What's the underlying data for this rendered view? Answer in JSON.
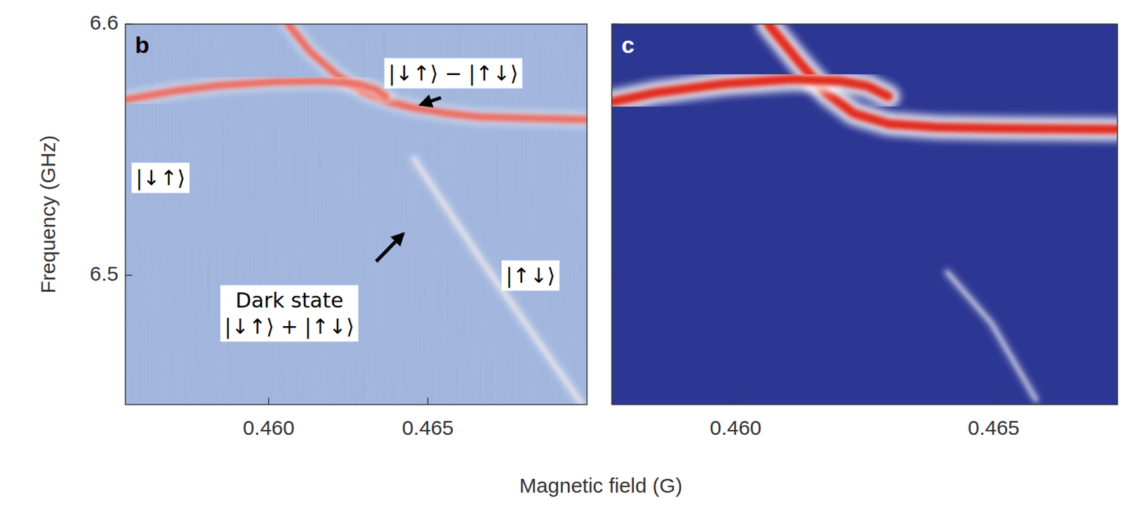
{
  "chart_data": [
    {
      "type": "line",
      "panel": "b",
      "x_label": "Magnetic field (G)",
      "y_label": "Frequency (GHz)",
      "xlim": [
        0.4555,
        0.47
      ],
      "ylim": [
        6.4485,
        6.6
      ],
      "xticks": [
        {
          "value": 0.46,
          "label": "0.460"
        },
        {
          "value": 0.465,
          "label": "0.465"
        }
      ],
      "yticks": [
        6.5,
        6.6
      ],
      "grid": false,
      "series": [
        {
          "color": "#ec6a5e",
          "x": [
            0.46061,
            0.4613,
            0.46217,
            0.46303,
            0.46379,
            0.46455,
            0.46563,
            0.46665,
            0.47
          ],
          "values": [
            6.6,
            6.589,
            6.5795,
            6.5726,
            6.569,
            6.5666,
            6.5644,
            6.563,
            6.5619
          ]
        },
        {
          "color": "#ec6a5e",
          "x": [
            0.4555,
            0.45697,
            0.45849,
            0.46022,
            0.46173,
            0.46282,
            0.46336,
            0.46369
          ],
          "values": [
            6.5699,
            6.5732,
            6.5756,
            6.577,
            6.5773,
            6.5762,
            6.574,
            6.5712
          ]
        },
        {
          "color": "#f5e8e8",
          "x": [
            0.46455,
            0.46671,
            0.46985
          ],
          "values": [
            6.5466,
            6.5055,
            6.4485
          ]
        }
      ],
      "annotations": [
        {
          "text": "|↓↑⟩"
        },
        {
          "text": "|↓↑⟩ − |↑↓⟩"
        },
        {
          "text": [
            "Dark state",
            "|↓↑⟩ + |↑↓⟩"
          ]
        },
        {
          "text": "|↑↓⟩"
        }
      ]
    },
    {
      "type": "line",
      "panel": "c",
      "xlim": [
        0.4576,
        0.4674
      ],
      "ylim": [
        6.4485,
        6.6
      ],
      "xticks": [
        {
          "value": 0.46,
          "label": "0.460"
        },
        {
          "value": 0.465,
          "label": "0.465"
        }
      ],
      "yticks": [
        6.5,
        6.6
      ],
      "tick_labels": "x",
      "grid": false,
      "series": [
        {
          "color": "#e2291d",
          "x": [
            0.46063,
            0.46123,
            0.46176,
            0.46229,
            0.46296,
            0.46389,
            0.46509,
            0.46739
          ],
          "values": [
            6.6,
            6.5849,
            6.5726,
            6.5644,
            6.5603,
            6.5589,
            6.5584,
            6.5581
          ]
        },
        {
          "color": "#e2291d",
          "x": [
            0.4576,
            0.45843,
            0.45976,
            0.46109,
            0.46203,
            0.46256,
            0.46296
          ],
          "values": [
            6.569,
            6.5726,
            6.5762,
            6.5781,
            6.5773,
            6.5753,
            6.5712
          ]
        },
        {
          "color": "#ffffff",
          "x": [
            0.46409,
            0.46496,
            0.46583
          ],
          "values": [
            6.5014,
            6.4808,
            6.4501
          ]
        }
      ]
    }
  ]
}
